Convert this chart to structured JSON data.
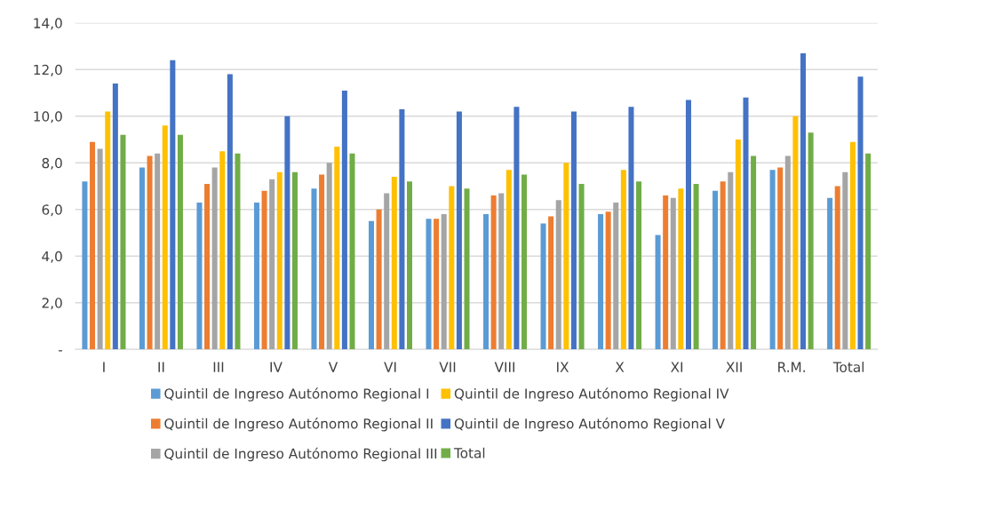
{
  "chart_data": {
    "type": "bar",
    "categories": [
      "I",
      "II",
      "III",
      "IV",
      "V",
      "VI",
      "VII",
      "VIII",
      "IX",
      "X",
      "XI",
      "XII",
      "R.M.",
      "Total"
    ],
    "series": [
      {
        "name": "Quintil de Ingreso Autónomo Regional I",
        "color": "#5b9bd5",
        "values": [
          7.2,
          7.8,
          6.3,
          6.3,
          6.9,
          5.5,
          5.6,
          5.8,
          5.4,
          5.8,
          4.9,
          6.8,
          7.7,
          6.5
        ]
      },
      {
        "name": "Quintil de Ingreso Autónomo Regional II",
        "color": "#ed7d31",
        "values": [
          8.9,
          8.3,
          7.1,
          6.8,
          7.5,
          6.0,
          5.6,
          6.6,
          5.7,
          5.9,
          6.6,
          7.2,
          7.8,
          7.0
        ]
      },
      {
        "name": "Quintil de Ingreso Autónomo Regional III",
        "color": "#a5a5a5",
        "values": [
          8.6,
          8.4,
          7.8,
          7.3,
          8.0,
          6.7,
          5.8,
          6.7,
          6.4,
          6.3,
          6.5,
          7.6,
          8.3,
          7.6
        ]
      },
      {
        "name": "Quintil de Ingreso Autónomo Regional IV",
        "color": "#ffc000",
        "values": [
          10.2,
          9.6,
          8.5,
          7.6,
          8.7,
          7.4,
          7.0,
          7.7,
          8.0,
          7.7,
          6.9,
          9.0,
          10.0,
          8.9
        ]
      },
      {
        "name": "Quintil de Ingreso Autónomo Regional V",
        "color": "#4472c4",
        "values": [
          11.4,
          12.4,
          11.8,
          10.0,
          11.1,
          10.3,
          10.2,
          10.4,
          10.2,
          10.4,
          10.7,
          10.8,
          12.7,
          11.7
        ]
      },
      {
        "name": "Total",
        "color": "#70ad47",
        "values": [
          9.2,
          9.2,
          8.4,
          7.6,
          8.4,
          7.2,
          6.9,
          7.5,
          7.1,
          7.2,
          7.1,
          8.3,
          9.3,
          8.4
        ]
      }
    ],
    "ylim": [
      0,
      14
    ],
    "yticks": [
      {
        "value": 0,
        "label": "-"
      },
      {
        "value": 2,
        "label": "2,0"
      },
      {
        "value": 4,
        "label": "4,0"
      },
      {
        "value": 6,
        "label": "6,0"
      },
      {
        "value": 8,
        "label": "8,0"
      },
      {
        "value": 10,
        "label": "10,0"
      },
      {
        "value": 12,
        "label": "12,0"
      },
      {
        "value": 14,
        "label": "14,0"
      }
    ],
    "grid": "y",
    "legend": "bottom"
  }
}
